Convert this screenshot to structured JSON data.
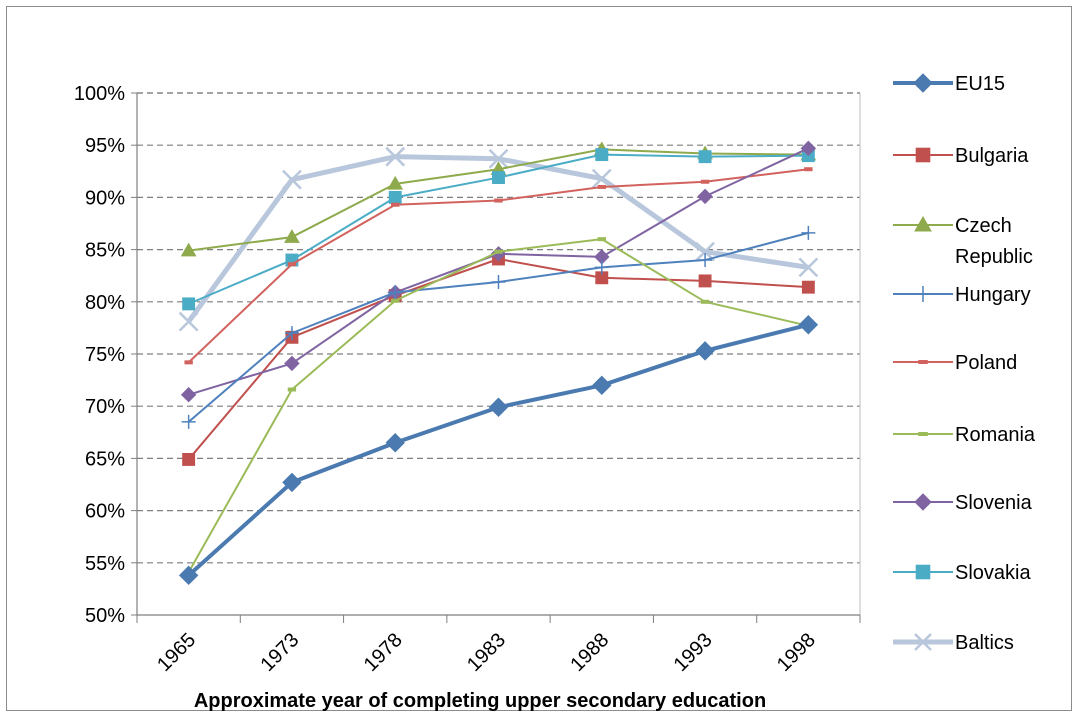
{
  "chart_data": {
    "type": "line",
    "title": "",
    "xlabel": "Approximate year of completing upper secondary education",
    "ylabel": "",
    "categories": [
      "1965",
      "1973",
      "1978",
      "1983",
      "1988",
      "1993",
      "1998"
    ],
    "ylim": [
      0.5,
      1.0
    ],
    "yticks": [
      "50%",
      "55%",
      "60%",
      "65%",
      "70%",
      "75%",
      "80%",
      "85%",
      "90%",
      "95%",
      "100%"
    ],
    "grid": true,
    "legend_position": "right",
    "series": [
      {
        "name": "EU15",
        "color": "#4a7ab0",
        "marker": "diamond",
        "width": 4,
        "values": [
          0.538,
          0.627,
          0.665,
          0.699,
          0.72,
          0.753,
          0.778
        ]
      },
      {
        "name": "Bulgaria",
        "color": "#c0504d",
        "marker": "square",
        "width": 2,
        "values": [
          0.649,
          0.766,
          0.806,
          0.841,
          0.823,
          0.82,
          0.814
        ]
      },
      {
        "name": "Czech\nRepublic",
        "color": "#8faa4d",
        "marker": "triangle",
        "width": 2,
        "values": [
          0.849,
          0.862,
          0.913,
          0.927,
          0.946,
          0.942,
          0.941
        ]
      },
      {
        "name": "Hungary",
        "color": "#4f81bd",
        "marker": "plus",
        "width": 2,
        "values": [
          0.685,
          0.77,
          0.809,
          0.819,
          0.833,
          0.84,
          0.866
        ]
      },
      {
        "name": "Poland",
        "color": "#d2625e",
        "marker": "dash",
        "width": 2,
        "values": [
          0.742,
          0.836,
          0.893,
          0.897,
          0.91,
          0.915,
          0.927
        ]
      },
      {
        "name": "Romania",
        "color": "#9bbb59",
        "marker": "dash",
        "width": 2,
        "values": [
          0.541,
          0.716,
          0.801,
          0.848,
          0.86,
          0.8,
          0.777
        ]
      },
      {
        "name": "Slovenia",
        "color": "#8064a2",
        "marker": "diamond",
        "width": 2,
        "values": [
          0.711,
          0.741,
          0.809,
          0.846,
          0.843,
          0.901,
          0.947
        ]
      },
      {
        "name": "Slovakia",
        "color": "#4bacc6",
        "marker": "square",
        "width": 2,
        "values": [
          0.798,
          0.84,
          0.9,
          0.919,
          0.941,
          0.939,
          0.94
        ]
      },
      {
        "name": "Baltics",
        "color": "#b9c7dc",
        "marker": "x",
        "width": 5,
        "values": [
          0.781,
          0.917,
          0.939,
          0.937,
          0.918,
          0.848,
          0.833
        ]
      }
    ]
  }
}
